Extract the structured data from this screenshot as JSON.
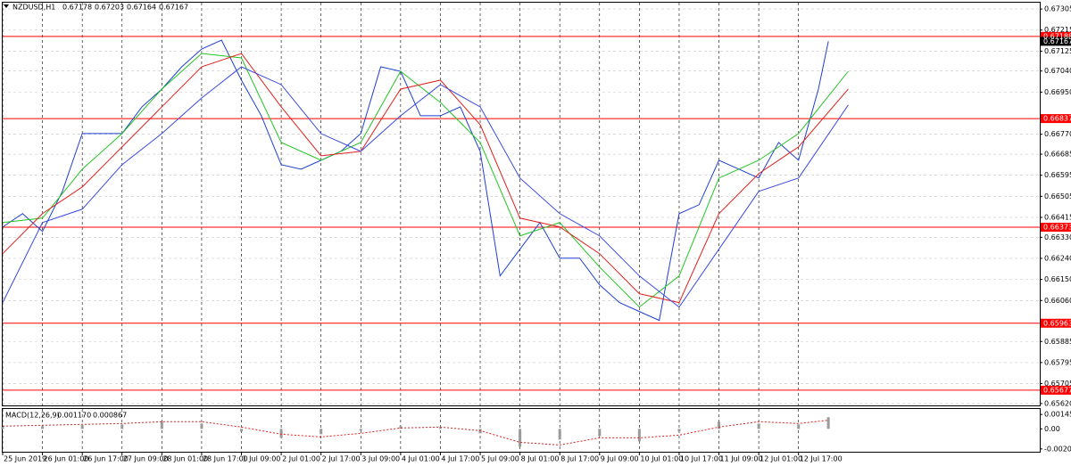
{
  "chart_data": {
    "type": "line",
    "title": "NZDUSD,H1",
    "ohlc": [
      0.67178,
      0.67203,
      0.67164,
      0.67167
    ],
    "xlim": [
      0,
      417
    ],
    "xticks": [
      {
        "value": 0,
        "label": "25 Jun 2019"
      },
      {
        "value": 16,
        "label": "26 Jun 01:00"
      },
      {
        "value": 32,
        "label": "26 Jun 17:00"
      },
      {
        "value": 48,
        "label": "27 Jun 09:00"
      },
      {
        "value": 64,
        "label": "28 Jun 01:00"
      },
      {
        "value": 80,
        "label": "28 Jun 17:00"
      },
      {
        "value": 96,
        "label": "1 Jul 09:00"
      },
      {
        "value": 112,
        "label": "2 Jul 01:00"
      },
      {
        "value": 128,
        "label": "2 Jul 17:00"
      },
      {
        "value": 144,
        "label": "3 Jul 09:00"
      },
      {
        "value": 160,
        "label": "4 Jul 01:00"
      },
      {
        "value": 176,
        "label": "4 Jul 17:00"
      },
      {
        "value": 192,
        "label": "5 Jul 09:00"
      },
      {
        "value": 208,
        "label": "8 Jul 01:00"
      },
      {
        "value": 224,
        "label": "8 Jul 17:00"
      },
      {
        "value": 240,
        "label": "9 Jul 09:00"
      },
      {
        "value": 256,
        "label": "10 Jul 01:00"
      },
      {
        "value": 272,
        "label": "10 Jul 17:00"
      },
      {
        "value": 288,
        "label": "11 Jul 09:00"
      },
      {
        "value": 304,
        "label": "12 Jul 01:00"
      },
      {
        "value": 320,
        "label": "12 Jul 17:00"
      }
    ],
    "ylim": [
      0.65612,
      0.67332
    ],
    "yticks": [
      0.67305,
      0.67215,
      0.67125,
      {
        "value": 0.6704,
        "label": "0.67040"
      },
      {
        "value": 0.6695,
        "label": "0.66950"
      },
      {
        "value": 0.6677,
        "label": "0.66770"
      },
      0.66685,
      0.66595,
      0.66505,
      0.66415,
      {
        "value": 0.6633,
        "label": "0.66330"
      },
      {
        "value": 0.6624,
        "label": "0.66240"
      },
      {
        "value": 0.6615,
        "label": "0.66150"
      },
      {
        "value": 0.6606,
        "label": "0.66060"
      },
      0.65885,
      0.65795,
      0.65705,
      {
        "value": 0.6562,
        "label": "0.65620"
      }
    ],
    "grid": true,
    "series": [
      {
        "color": "#1f3fd0",
        "width": 1,
        "x": [
          0,
          8,
          16,
          24,
          32,
          40,
          48,
          56,
          64,
          72,
          80,
          88,
          96,
          104,
          112,
          120,
          128,
          136,
          144,
          152,
          160,
          168,
          176,
          184,
          192,
          200,
          208,
          216,
          224,
          232,
          240,
          248,
          256,
          264,
          272,
          280,
          288,
          296,
          304,
          312,
          320,
          328,
          332
        ],
        "values": [
          0.66374,
          0.66431,
          0.66355,
          0.66526,
          0.66773,
          0.66773,
          0.66773,
          0.66887,
          0.66963,
          0.67058,
          0.67134,
          0.67172,
          0.67001,
          0.66849,
          0.6664,
          0.66621,
          0.66659,
          0.66697,
          0.66773,
          0.67058,
          0.67039,
          0.66849,
          0.66849,
          0.66887,
          0.66697,
          0.66165,
          0.66279,
          0.66393,
          0.66241,
          0.66241,
          0.66127,
          0.66051,
          0.66013,
          0.65975,
          0.66431,
          0.66469,
          0.66659,
          0.66621,
          0.66583,
          0.66735,
          0.66659,
          0.66963,
          0.67167
        ]
      },
      {
        "color": "#22c422",
        "width": 1,
        "x": [
          0,
          16,
          32,
          48,
          64,
          80,
          96,
          112,
          128,
          144,
          160,
          176,
          192,
          208,
          224,
          240,
          256,
          272,
          288,
          304,
          320,
          340
        ],
        "values": [
          0.66393,
          0.66412,
          0.66621,
          0.66773,
          0.66963,
          0.67115,
          0.67096,
          0.66735,
          0.66659,
          0.66735,
          0.67039,
          0.66906,
          0.66735,
          0.66336,
          0.66393,
          0.66203,
          0.66032,
          0.66165,
          0.66583,
          0.66659,
          0.66773,
          0.67039
        ]
      },
      {
        "color": "#e0211c",
        "width": 1,
        "x": [
          0,
          16,
          32,
          48,
          64,
          80,
          96,
          112,
          128,
          144,
          160,
          176,
          192,
          208,
          224,
          240,
          256,
          272,
          288,
          304,
          320,
          340
        ],
        "values": [
          0.6626,
          0.66431,
          0.66545,
          0.66716,
          0.66887,
          0.67058,
          0.67115,
          0.66887,
          0.66678,
          0.66697,
          0.66963,
          0.67001,
          0.66811,
          0.66412,
          0.66374,
          0.6626,
          0.66089,
          0.66051,
          0.66431,
          0.66602,
          0.66716,
          0.66963
        ]
      },
      {
        "color": "#3a4ae0",
        "width": 1,
        "x": [
          0,
          16,
          32,
          48,
          64,
          80,
          96,
          112,
          128,
          144,
          160,
          176,
          192,
          208,
          224,
          240,
          256,
          272,
          288,
          304,
          320,
          340
        ],
        "values": [
          0.66051,
          0.66393,
          0.6645,
          0.6664,
          0.66773,
          0.66925,
          0.67058,
          0.66982,
          0.66773,
          0.66697,
          0.66849,
          0.66982,
          0.66887,
          0.66583,
          0.66431,
          0.66336,
          0.66165,
          0.66032,
          0.66279,
          0.66526,
          0.66583,
          0.66895
        ]
      }
    ],
    "levels": [
      {
        "value": 0.67188,
        "color": "#ff0000"
      },
      {
        "value": 0.66837,
        "color": "#ff0000"
      },
      {
        "value": 0.66373,
        "color": "#ff0000"
      },
      {
        "value": 0.65963,
        "color": "#ff0000"
      },
      {
        "value": 0.65677,
        "color": "#ff0000"
      }
    ],
    "last_price": 0.67167,
    "macd": {
      "label": "MACD(12,26,9)",
      "values": [
        {
          "value": 0.00117,
          "label": "0.001170"
        },
        0.000867
      ],
      "y2lim": [
        -0.0023,
        0.002
      ],
      "y2ticks": [
        0.001453,
        {
          "value": 0,
          "label": "0.00"
        },
        -0.002017
      ],
      "histogram": {
        "color": "#9a9a9a",
        "x": [
          0,
          16,
          32,
          48,
          64,
          80,
          96,
          112,
          128,
          144,
          160,
          176,
          192,
          208,
          224,
          240,
          256,
          272,
          288,
          304,
          320,
          332
        ],
        "values": [
          0.00018,
          0.00027,
          0.00036,
          0.00045,
          0.00072,
          0.00054,
          -0.00027,
          -0.0009,
          -0.00054,
          -0.00018,
          0.00027,
          0.00018,
          -0.00045,
          -0.0018,
          -0.00108,
          -0.00072,
          -0.00126,
          -0.00027,
          0.00072,
          0.00054,
          0.00045,
          0.00117
        ]
      },
      "signal": {
        "color": "#e0211c",
        "x": [
          0,
          16,
          32,
          48,
          64,
          80,
          96,
          112,
          128,
          144,
          160,
          176,
          192,
          208,
          224,
          240,
          256,
          272,
          288,
          304,
          320,
          332
        ],
        "values": [
          0.00027,
          0.00036,
          0.00045,
          0.00054,
          0.00072,
          0.00072,
          0.00018,
          -0.00054,
          -0.00081,
          -0.00045,
          9e-05,
          0.00018,
          -0.00018,
          -0.00135,
          -0.00162,
          -0.0009,
          -0.0009,
          -0.00063,
          0.00018,
          0.00072,
          0.00054,
          0.000867
        ]
      }
    }
  }
}
